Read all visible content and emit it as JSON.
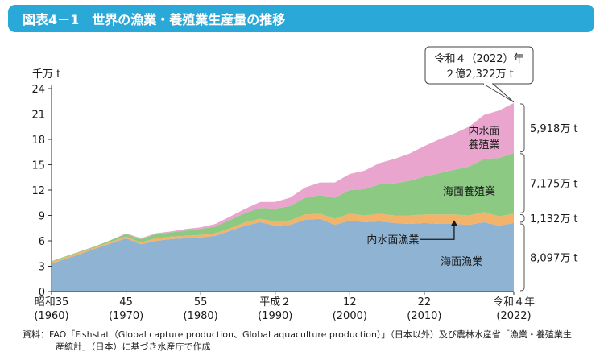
{
  "header": {
    "figure_label": "図表4－1",
    "title": "世界の漁業・養殖業生産量の推移"
  },
  "chart_data": {
    "type": "area",
    "stacked": true,
    "title": "世界の漁業・養殖業生産量の推移",
    "ylabel": "千万 t",
    "ylim": [
      0,
      24
    ],
    "yticks": [
      0,
      3,
      6,
      9,
      12,
      15,
      18,
      21,
      24
    ],
    "xlim": [
      1960,
      2022
    ],
    "x_tick_labels": [
      {
        "year": 1960,
        "era": "昭和35",
        "western": "(1960)"
      },
      {
        "year": 1970,
        "era": "45",
        "western": "(1970)"
      },
      {
        "year": 1980,
        "era": "55",
        "western": "(1980)"
      },
      {
        "year": 1990,
        "era": "平成２",
        "western": "(1990)"
      },
      {
        "year": 2000,
        "era": "12",
        "western": "(2000)"
      },
      {
        "year": 2010,
        "era": "22",
        "western": "(2010)"
      },
      {
        "year": 2022,
        "era": "令和４年",
        "western": "(2022)"
      }
    ],
    "x": [
      1960,
      1962,
      1964,
      1966,
      1968,
      1970,
      1972,
      1974,
      1976,
      1978,
      1980,
      1982,
      1984,
      1986,
      1988,
      1990,
      1992,
      1994,
      1996,
      1998,
      2000,
      2002,
      2004,
      2006,
      2008,
      2010,
      2012,
      2014,
      2016,
      2018,
      2020,
      2022
    ],
    "series": [
      {
        "name": "海面漁業",
        "label": "海面漁業",
        "color": "#8fb3d3",
        "values": [
          3.3,
          3.9,
          4.5,
          5.1,
          5.7,
          6.3,
          5.6,
          6.0,
          6.2,
          6.3,
          6.4,
          6.6,
          7.2,
          7.8,
          8.2,
          7.8,
          7.9,
          8.5,
          8.6,
          7.9,
          8.4,
          8.2,
          8.3,
          8.1,
          8.0,
          8.1,
          8.0,
          8.0,
          7.9,
          8.2,
          7.8,
          8.1
        ]
      },
      {
        "name": "内水面漁業",
        "label": "内水面漁業",
        "color": "#f2b36a",
        "values": [
          0.2,
          0.2,
          0.2,
          0.2,
          0.2,
          0.2,
          0.2,
          0.3,
          0.3,
          0.3,
          0.3,
          0.3,
          0.3,
          0.4,
          0.4,
          0.5,
          0.5,
          0.6,
          0.6,
          0.7,
          0.8,
          0.8,
          0.9,
          0.9,
          1.0,
          1.0,
          1.1,
          1.1,
          1.1,
          1.2,
          1.1,
          1.1
        ]
      },
      {
        "name": "海面養殖業",
        "label": "海面養殖業",
        "color": "#8cca84",
        "values": [
          0.1,
          0.1,
          0.1,
          0.1,
          0.2,
          0.3,
          0.4,
          0.5,
          0.5,
          0.6,
          0.7,
          0.8,
          1.0,
          1.1,
          1.3,
          1.5,
          1.7,
          2.0,
          2.2,
          2.5,
          2.8,
          3.1,
          3.5,
          3.8,
          4.1,
          4.5,
          4.9,
          5.3,
          5.8,
          6.3,
          6.9,
          7.2
        ]
      },
      {
        "name": "内水面養殖業",
        "label": "内水面\n養殖業",
        "color": "#e9a5cd",
        "values": [
          0.0,
          0.0,
          0.0,
          0.0,
          0.0,
          0.1,
          0.1,
          0.1,
          0.1,
          0.2,
          0.2,
          0.3,
          0.4,
          0.5,
          0.7,
          0.8,
          1.0,
          1.2,
          1.5,
          1.8,
          1.9,
          2.2,
          2.5,
          2.9,
          3.2,
          3.6,
          4.0,
          4.3,
          4.7,
          5.2,
          5.6,
          5.9
        ]
      }
    ],
    "right_annotations": [
      {
        "series": "内水面養殖業",
        "text": "5,918万 t"
      },
      {
        "series": "海面養殖業",
        "text": "7,175万 t"
      },
      {
        "series": "内水面漁業",
        "text": "1,132万 t"
      },
      {
        "series": "海面漁業",
        "text": "8,097万 t"
      }
    ],
    "callout": {
      "line1": "令和４（2022）年",
      "line2": "２億2,322万 t",
      "total": 22.3
    }
  },
  "source": {
    "line1": "資料：FAO「Fishstat（Global capture production、Global aquaculture production）」（日本以外）及び農林水産省「漁業・養殖業生",
    "line2": "産統計」（日本）に基づき水産庁で作成"
  }
}
